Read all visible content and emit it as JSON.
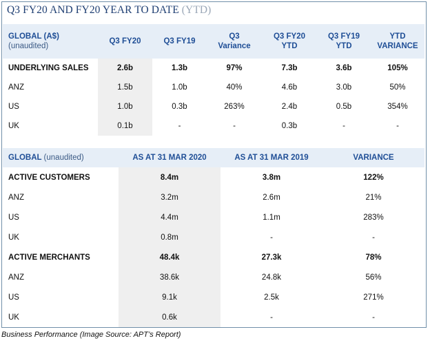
{
  "title": {
    "main": "Q3 FY20 AND FY20 YEAR TO DATE",
    "suffix": "(YTD)"
  },
  "sales_table": {
    "header": {
      "label": "GLOBAL (A$)",
      "sublabel": "(unaudited)",
      "columns": [
        [
          "Q3 FY20"
        ],
        [
          "Q3 FY19"
        ],
        [
          "Q3",
          "Variance"
        ],
        [
          "Q3 FY20",
          "YTD"
        ],
        [
          "Q3 FY19",
          "YTD"
        ],
        [
          "YTD",
          "VARIANCE"
        ]
      ]
    },
    "rows": [
      {
        "label": "UNDERLYING SALES",
        "values": [
          "2.6b",
          "1.3b",
          "97%",
          "7.3b",
          "3.6b",
          "105%"
        ]
      },
      {
        "label": "ANZ",
        "values": [
          "1.5b",
          "1.0b",
          "40%",
          "4.6b",
          "3.0b",
          "50%"
        ]
      },
      {
        "label": "US",
        "values": [
          "1.0b",
          "0.3b",
          "263%",
          "2.4b",
          "0.5b",
          "354%"
        ]
      },
      {
        "label": "UK",
        "values": [
          "0.1b",
          "-",
          "-",
          "0.3b",
          "-",
          "-"
        ]
      }
    ]
  },
  "metrics_table": {
    "header": {
      "label": "GLOBAL",
      "sublabel": "(unaudited)",
      "columns": [
        "AS AT 31 MAR 2020",
        "AS AT 31 MAR 2019",
        "VARIANCE"
      ]
    },
    "rows": [
      {
        "label": "ACTIVE CUSTOMERS",
        "values": [
          "8.4m",
          "3.8m",
          "122%"
        ]
      },
      {
        "label": "ANZ",
        "values": [
          "3.2m",
          "2.6m",
          "21%"
        ]
      },
      {
        "label": "US",
        "values": [
          "4.4m",
          "1.1m",
          "283%"
        ]
      },
      {
        "label": "UK",
        "values": [
          "0.8m",
          "-",
          "-"
        ]
      },
      {
        "label": "ACTIVE MERCHANTS",
        "values": [
          "48.4k",
          "27.3k",
          "78%"
        ]
      },
      {
        "label": "ANZ",
        "values": [
          "38.6k",
          "24.8k",
          "56%"
        ]
      },
      {
        "label": "US",
        "values": [
          "9.1k",
          "2.5k",
          "271%"
        ]
      },
      {
        "label": "UK",
        "values": [
          "0.6k",
          "-",
          "-"
        ]
      }
    ]
  },
  "caption": "Business Performance (Image Source: APT’s Report)"
}
